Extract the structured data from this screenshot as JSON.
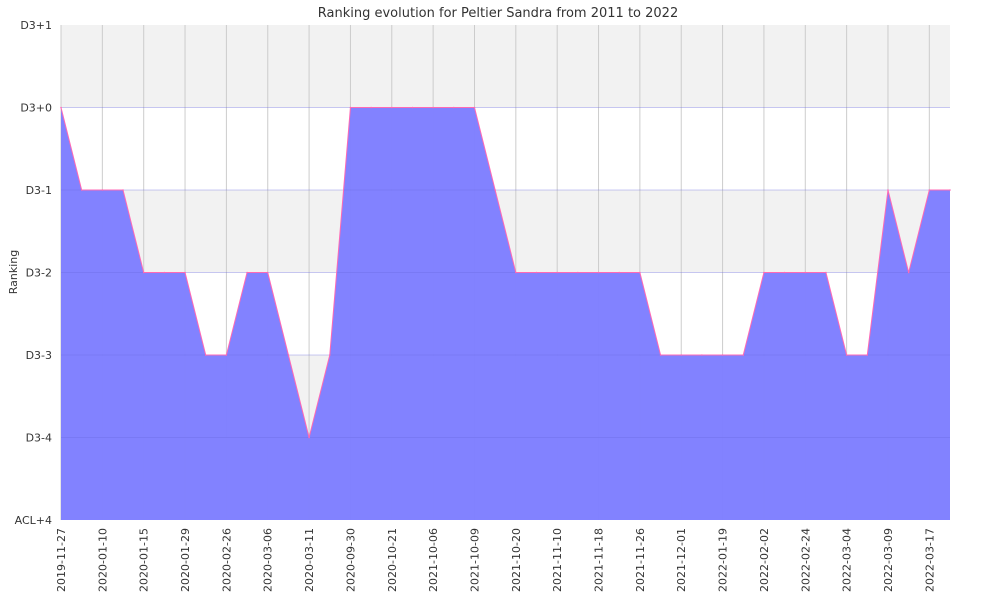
{
  "chart_data": {
    "type": "area",
    "title": "Ranking evolution for Peltier Sandra from 2011 to 2022",
    "ylabel": "Ranking",
    "xlabel": "",
    "y_ticks": [
      "ACL+4",
      "D3-4",
      "D3-3",
      "D3-2",
      "D3-1",
      "D3+0",
      "D3+1"
    ],
    "x_tick_labels": [
      "2019-11-27",
      "2020-01-10",
      "2020-01-15",
      "2020-01-29",
      "2020-02-26",
      "2020-03-06",
      "2020-03-11",
      "2020-09-30",
      "2020-10-21",
      "2021-10-06",
      "2021-10-09",
      "2021-10-20",
      "2021-11-10",
      "2021-11-18",
      "2021-11-26",
      "2021-12-01",
      "2022-01-19",
      "2022-02-02",
      "2022-02-24",
      "2022-03-04",
      "2022-03-09",
      "2022-03-17"
    ],
    "series": [
      {
        "values": [
          "D3+0",
          "D3-1",
          "D3-1",
          "D3-1",
          "D3-2",
          "D3-2",
          "D3-2",
          "D3-3",
          "D3-3",
          "D3-2",
          "D3-2",
          "D3-3",
          "D3-4",
          "D3-3",
          "D3+0",
          "D3+0",
          "D3+0",
          "D3+0",
          "D3+0",
          "D3+0",
          "D3+0",
          "D3-1",
          "D3-2",
          "D3-2",
          "D3-2",
          "D3-2",
          "D3-2",
          "D3-2",
          "D3-2",
          "D3-3",
          "D3-3",
          "D3-3",
          "D3-3",
          "D3-3",
          "D3-2",
          "D3-2",
          "D3-2",
          "D3-2",
          "D3-3",
          "D3-3",
          "D3-1",
          "D3-2",
          "D3-1",
          "D3-1"
        ]
      }
    ],
    "fill_color": "#7f7fff",
    "line_color": "#ff69b4",
    "band_color": "#f2f2f2",
    "grid": true
  }
}
